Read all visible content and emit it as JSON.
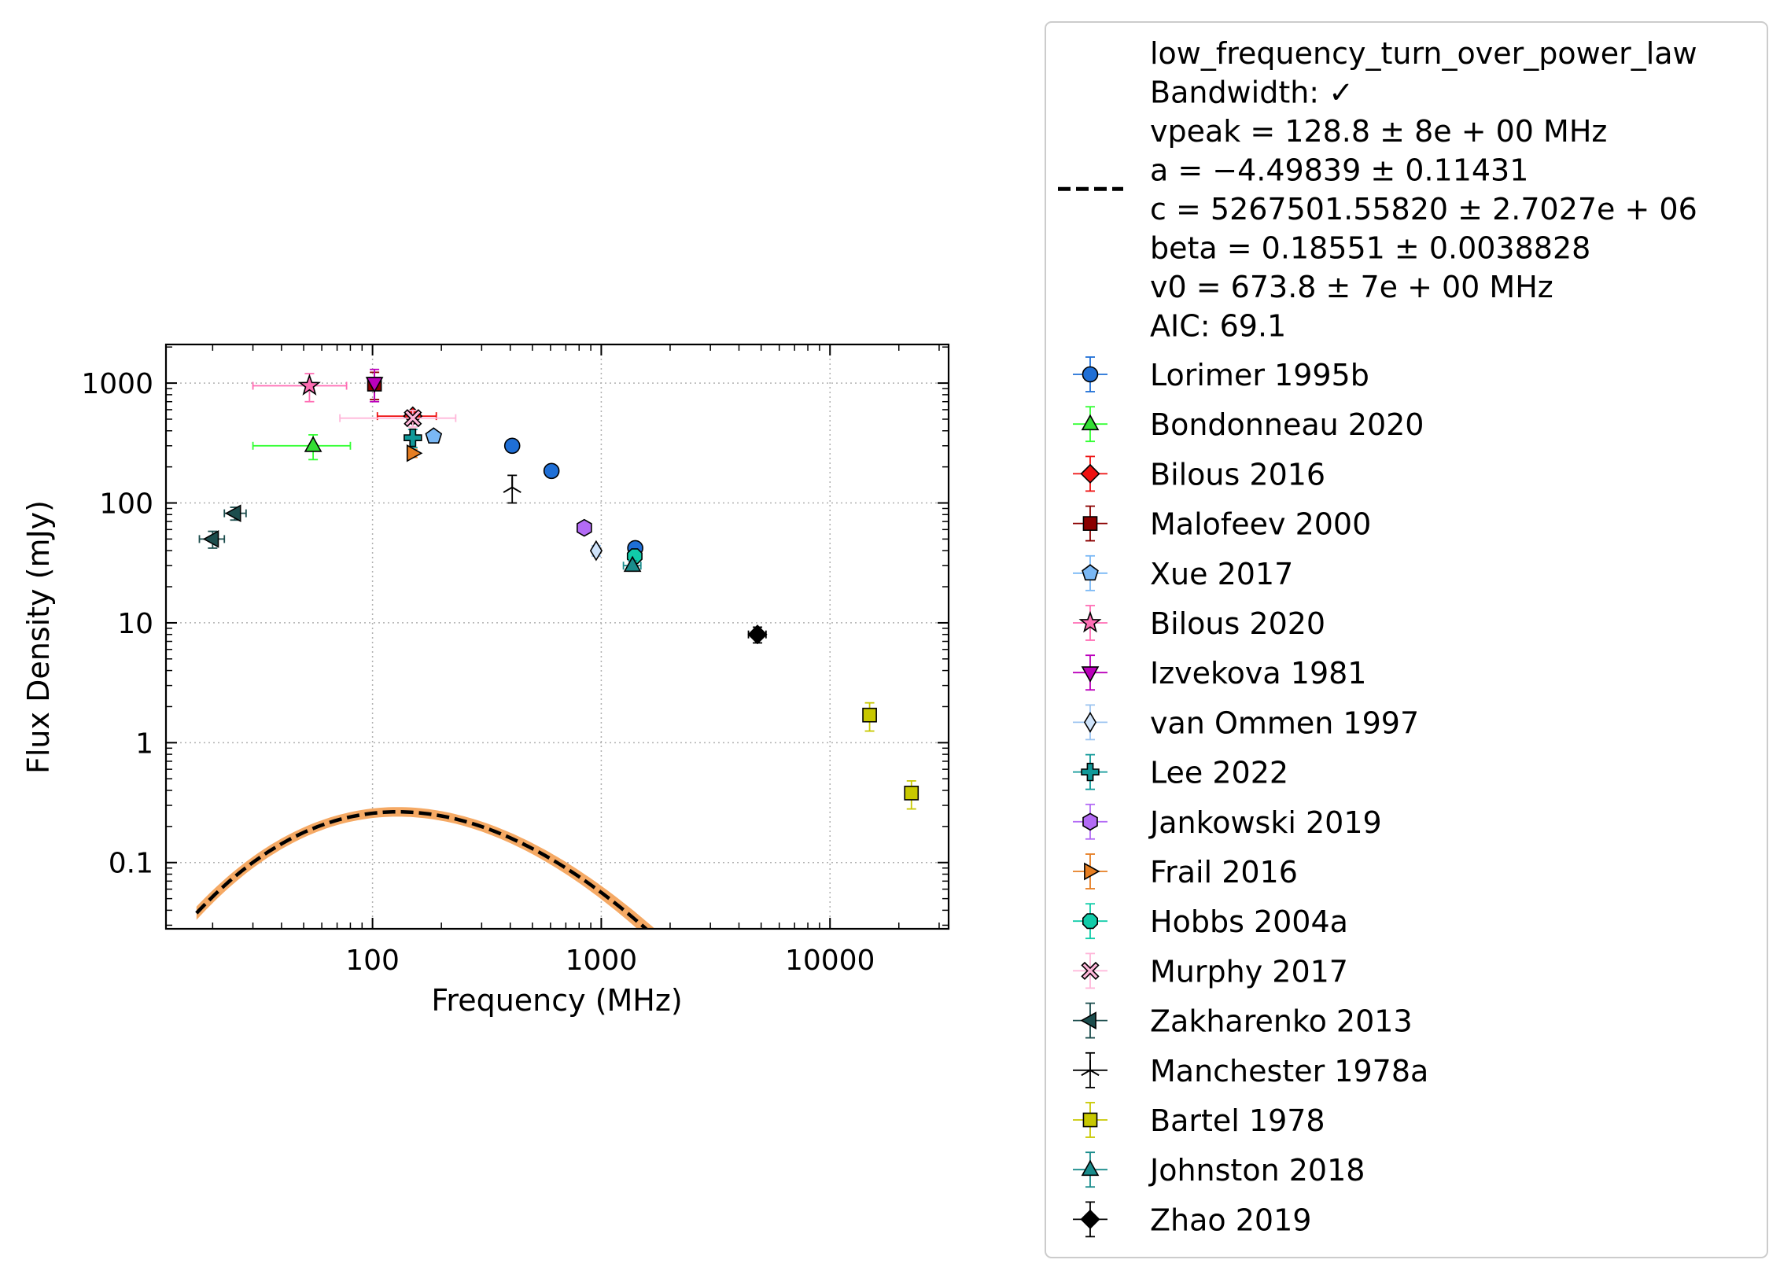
{
  "chart_data": {
    "type": "scatter",
    "xlabel": "Frequency (MHz)",
    "ylabel": "Flux Density (mJy)",
    "xscale": "log",
    "yscale": "log",
    "xlim": [
      12.5,
      33000
    ],
    "ylim": [
      0.028,
      2100
    ],
    "xticks": [
      {
        "value": 100,
        "label": "100"
      },
      {
        "value": 1000,
        "label": "1000"
      },
      {
        "value": 10000,
        "label": "10000"
      }
    ],
    "yticks": [
      {
        "value": 0.1,
        "label": "0.1"
      },
      {
        "value": 1,
        "label": "1"
      },
      {
        "value": 10,
        "label": "10"
      },
      {
        "value": 100,
        "label": "100"
      },
      {
        "value": 1000,
        "label": "1000"
      }
    ],
    "grid": true,
    "legend_position": "outside-right",
    "fit": {
      "lines": [
        "low_frequency_turn_over_power_law",
        "Bandwidth: ✓",
        "vpeak = 128.8 ± 8e + 00 MHz",
        "a = −4.49839 ± 0.11431",
        "c = 5267501.55820 ± 2.7027e + 06",
        "beta = 0.18551 ± 0.0038828",
        "v0 = 673.8 ± 7e + 00 MHz",
        "AIC: 69.1"
      ],
      "model": "low_frequency_turn_over_power_law",
      "vpeak": 128.8,
      "a": -4.49839,
      "c": 5267501.5582,
      "beta": 0.18551,
      "v0": 673.8,
      "x_range": [
        17,
        22500
      ],
      "line_color": "#000000",
      "band_color": "#f5a964"
    },
    "series": [
      {
        "name": "Lorimer 1995b",
        "marker": "circle",
        "color": "#1f6fd6",
        "ecolor": "#1f6fd6",
        "points": [
          {
            "x": 408,
            "y": 300,
            "yerr": 15
          },
          {
            "x": 606,
            "y": 185,
            "yerr": 10
          },
          {
            "x": 1408,
            "y": 42,
            "yerr": 3
          }
        ]
      },
      {
        "name": "Bondonneau 2020",
        "marker": "triangle-up",
        "color": "#33dd33",
        "ecolor": "#33ff33",
        "points": [
          {
            "x": 55,
            "y": 300,
            "yerr": 70,
            "xlo": 30,
            "xhi": 80
          }
        ]
      },
      {
        "name": "Bilous 2016",
        "marker": "diamond",
        "color": "#ee1111",
        "ecolor": "#ee1111",
        "points": [
          {
            "x": 150,
            "y": 530,
            "yerr": 60,
            "xlo": 105,
            "xhi": 190
          }
        ]
      },
      {
        "name": "Malofeev 2000",
        "marker": "square",
        "color": "#8b0000",
        "ecolor": "#8b0000",
        "points": [
          {
            "x": 102,
            "y": 980,
            "yerr": 250
          }
        ]
      },
      {
        "name": "Xue 2017",
        "marker": "pentagon",
        "color": "#7ab8f5",
        "ecolor": "#7ab8f5",
        "points": [
          {
            "x": 185,
            "y": 360,
            "yerr": 25
          }
        ]
      },
      {
        "name": "Bilous 2020",
        "marker": "star",
        "color": "#ff6eb4",
        "ecolor": "#ff6eb4",
        "points": [
          {
            "x": 53,
            "y": 950,
            "yerr": 250,
            "xlo": 30,
            "xhi": 77
          }
        ]
      },
      {
        "name": "Izvekova 1981",
        "marker": "triangle-down",
        "color": "#bb00bb",
        "ecolor": "#bb00bb",
        "points": [
          {
            "x": 102,
            "y": 1000,
            "yerr": 300
          }
        ]
      },
      {
        "name": "van Ommen 1997",
        "marker": "thin-diamond",
        "color": "#cfe3fa",
        "ecolor": "#9cc4f0",
        "points": [
          {
            "x": 950,
            "y": 40,
            "yerr": 4
          }
        ]
      },
      {
        "name": "Lee 2022",
        "marker": "plus",
        "color": "#119999",
        "ecolor": "#119999",
        "points": [
          {
            "x": 150,
            "y": 350,
            "yerr": 60
          }
        ]
      },
      {
        "name": "Jankowski 2019",
        "marker": "hexagon",
        "color": "#b36bf5",
        "ecolor": "#b36bf5",
        "points": [
          {
            "x": 843,
            "y": 62,
            "yerr": 5
          }
        ]
      },
      {
        "name": "Frail 2016",
        "marker": "triangle-right",
        "color": "#e67e22",
        "ecolor": "#e67e22",
        "points": [
          {
            "x": 150,
            "y": 260,
            "yerr": 20
          }
        ]
      },
      {
        "name": "Hobbs 2004a",
        "marker": "octagon",
        "color": "#11cca9",
        "ecolor": "#11cca9",
        "points": [
          {
            "x": 1400,
            "y": 36,
            "yerr": 2
          }
        ]
      },
      {
        "name": "Murphy 2017",
        "marker": "x-filled",
        "color": "#ffb6d9",
        "ecolor": "#ffb6d9",
        "points": [
          {
            "x": 150,
            "y": 510,
            "yerr": 80,
            "xlo": 72,
            "xhi": 231
          }
        ]
      },
      {
        "name": "Zakharenko 2013",
        "marker": "triangle-left",
        "color": "#1c4d4d",
        "ecolor": "#1c4d4d",
        "points": [
          {
            "x": 20,
            "y": 50,
            "yerr": 8,
            "xlo": 17.5,
            "xhi": 22.5
          },
          {
            "x": 25,
            "y": 82,
            "yerr": 10,
            "xlo": 22.5,
            "xhi": 28
          }
        ]
      },
      {
        "name": "Manchester 1978a",
        "marker": "tri-star",
        "color": "#000000",
        "ecolor": "#000000",
        "points": [
          {
            "x": 408,
            "y": 135,
            "yerr": 35
          }
        ]
      },
      {
        "name": "Bartel 1978",
        "marker": "square",
        "color": "#c8c800",
        "ecolor": "#c8c800",
        "points": [
          {
            "x": 14900,
            "y": 1.7,
            "yerr": 0.45
          },
          {
            "x": 22700,
            "y": 0.38,
            "yerr": 0.1
          }
        ]
      },
      {
        "name": "Johnston 2018",
        "marker": "triangle-up",
        "color": "#1a8c8c",
        "ecolor": "#1a8c8c",
        "points": [
          {
            "x": 1369,
            "y": 30,
            "yerr": 3,
            "xlo": 1250,
            "xhi": 1490
          }
        ]
      },
      {
        "name": "Zhao 2019",
        "marker": "diamond",
        "color": "#000000",
        "ecolor": "#000000",
        "points": [
          {
            "x": 4820,
            "y": 8.0,
            "yerr": 1.2,
            "xlo": 4400,
            "xhi": 5250
          }
        ]
      }
    ]
  }
}
